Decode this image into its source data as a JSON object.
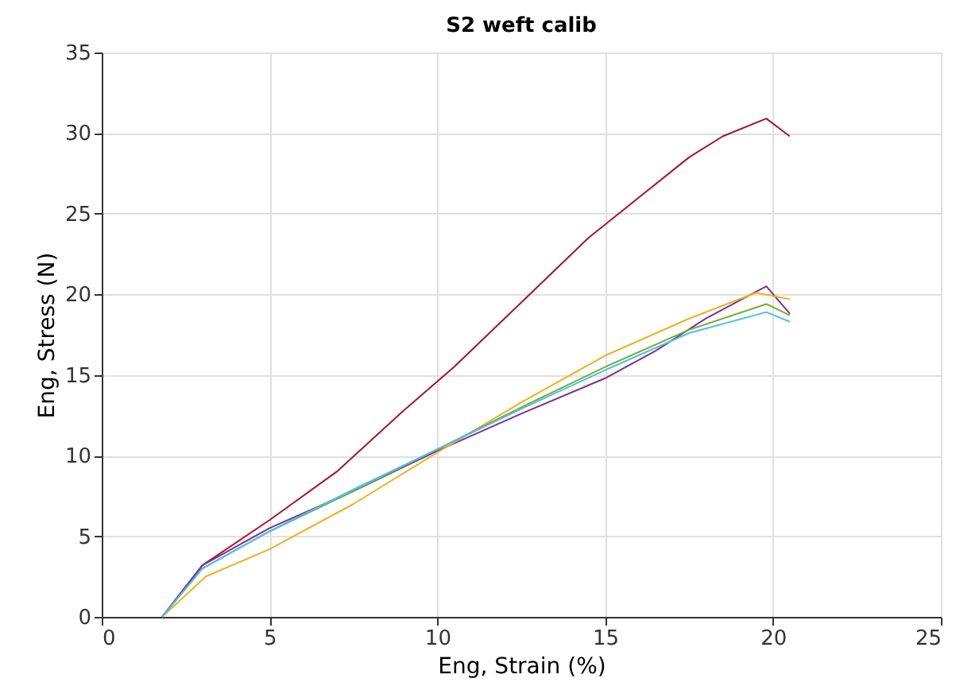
{
  "chart_data": {
    "type": "line",
    "title": "S2 weft calib",
    "xlabel": "Eng, Strain (%)",
    "ylabel": "Eng, Stress (N)",
    "xlim": [
      0,
      25
    ],
    "xticks": [
      0,
      5,
      10,
      15,
      20,
      25
    ],
    "ylim": [
      0,
      35
    ],
    "yticks": [
      0,
      5,
      10,
      15,
      20,
      25,
      30,
      35
    ],
    "grid": true,
    "line_style": "solid",
    "marker": "none",
    "series": [
      {
        "color": "#a2142f",
        "x": [
          1.8,
          3,
          5,
          7,
          9,
          10.5,
          12.5,
          14.5,
          16,
          17.5,
          18.5,
          19.8,
          20.5
        ],
        "values": [
          0,
          3.2,
          6,
          9,
          12.8,
          15.5,
          19.5,
          23.5,
          26,
          28.5,
          29.8,
          30.9,
          29.8
        ]
      },
      {
        "color": "#7e2f8e",
        "x": [
          1.8,
          3,
          5,
          7.5,
          10,
          12.5,
          15,
          16.5,
          18,
          19.8,
          20.5
        ],
        "values": [
          0,
          3.2,
          5.5,
          7.8,
          10.3,
          12.6,
          14.8,
          16.5,
          18.5,
          20.5,
          18.8
        ]
      },
      {
        "color": "#edb120",
        "x": [
          1.8,
          3.1,
          5,
          7.5,
          10,
          12.5,
          15,
          17.5,
          19.5,
          20.5
        ],
        "values": [
          0,
          2.5,
          4.2,
          7,
          10.2,
          13.3,
          16.2,
          18.5,
          20.1,
          19.7
        ]
      },
      {
        "color": "#77ac30",
        "x": [
          1.8,
          3,
          5,
          7.5,
          10,
          12.5,
          15,
          17.5,
          19.8,
          20.5
        ],
        "values": [
          0,
          3,
          5.3,
          7.8,
          10.4,
          13,
          15.5,
          17.8,
          19.4,
          18.7
        ]
      },
      {
        "color": "#4dbeee",
        "x": [
          1.8,
          3,
          5,
          7.5,
          10,
          12.5,
          15,
          17.5,
          19.8,
          20.5
        ],
        "values": [
          0,
          3,
          5.3,
          7.9,
          10.4,
          12.9,
          15.3,
          17.6,
          18.9,
          18.3
        ]
      }
    ]
  }
}
